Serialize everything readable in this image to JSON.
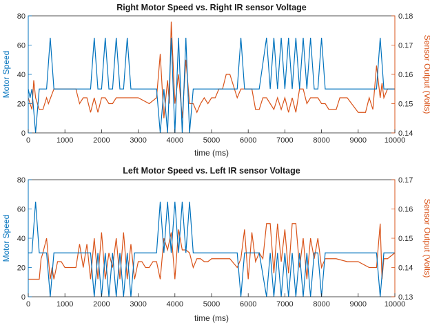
{
  "colors": {
    "left_axis": "#0072BD",
    "right_axis": "#D95319",
    "axes_box": "#262626"
  },
  "chart_data": [
    {
      "type": "line",
      "title": "Right Motor Speed vs. Right IR sensor Voltage",
      "xlabel": "time (ms)",
      "ylabel_left": "Motor Speed",
      "ylabel_right": "Sensor Output (Volts)",
      "xlim": [
        0,
        10000
      ],
      "ylim_left": [
        0,
        80
      ],
      "ylim_right": [
        0.14,
        0.18
      ],
      "xticks": [
        0,
        1000,
        2000,
        3000,
        4000,
        5000,
        6000,
        7000,
        8000,
        9000,
        10000
      ],
      "yticks_left": [
        0,
        20,
        40,
        60,
        80
      ],
      "yticks_right": [
        "0.14",
        "0.15",
        "0.16",
        "0.17",
        "0.18"
      ],
      "grid": false,
      "series": [
        {
          "name": "Motor Speed",
          "axis": "left",
          "color": "#0072BD",
          "x": [
            0,
            50,
            100,
            200,
            300,
            500,
            600,
            700,
            1000,
            1500,
            1700,
            1800,
            1900,
            2000,
            2100,
            2200,
            2300,
            2400,
            2500,
            2600,
            2700,
            2800,
            2900,
            3000,
            3300,
            3500,
            3600,
            3700,
            3800,
            3900,
            4000,
            4100,
            4200,
            4300,
            4400,
            4500,
            4600,
            5000,
            5500,
            5700,
            5800,
            5900,
            6000,
            6100,
            6300,
            6500,
            6600,
            6700,
            6800,
            6900,
            7000,
            7100,
            7200,
            7300,
            7400,
            7500,
            7600,
            7700,
            7800,
            7900,
            8000,
            8100,
            8500,
            9000,
            9400,
            9500,
            9600,
            9700,
            10000
          ],
          "y": [
            30,
            24,
            30,
            0,
            30,
            30,
            65,
            30,
            30,
            30,
            30,
            65,
            30,
            30,
            65,
            30,
            30,
            65,
            30,
            30,
            65,
            30,
            30,
            30,
            30,
            30,
            0,
            30,
            0,
            65,
            0,
            65,
            0,
            65,
            0,
            30,
            30,
            30,
            30,
            30,
            65,
            30,
            30,
            30,
            30,
            65,
            30,
            65,
            30,
            65,
            30,
            65,
            30,
            65,
            30,
            65,
            30,
            65,
            30,
            30,
            65,
            30,
            30,
            30,
            30,
            30,
            65,
            30,
            30
          ]
        },
        {
          "name": "Sensor Output",
          "axis": "right",
          "color": "#D95319",
          "x": [
            0,
            100,
            150,
            200,
            250,
            300,
            400,
            500,
            550,
            700,
            800,
            1000,
            1300,
            1400,
            1500,
            1600,
            1700,
            1800,
            1900,
            2000,
            2100,
            2200,
            2300,
            2400,
            2500,
            3000,
            3300,
            3500,
            3600,
            3700,
            3800,
            3850,
            3900,
            4000,
            4100,
            4200,
            4300,
            4400,
            4500,
            4600,
            4700,
            4800,
            4900,
            5000,
            5100,
            5200,
            5300,
            5400,
            5500,
            5700,
            5800,
            5900,
            6000,
            6100,
            6200,
            6300,
            6400,
            6500,
            6600,
            6700,
            6800,
            6900,
            7000,
            7100,
            7200,
            7300,
            7400,
            7500,
            7600,
            7700,
            7800,
            7900,
            8000,
            8100,
            8200,
            8400,
            8500,
            8700,
            9000,
            9200,
            9300,
            9400,
            9500,
            9600,
            9650,
            9700,
            9800,
            10000
          ],
          "y": [
            0.152,
            0.148,
            0.158,
            0.152,
            0.15,
            0.148,
            0.148,
            0.152,
            0.15,
            0.155,
            0.155,
            0.155,
            0.155,
            0.15,
            0.152,
            0.152,
            0.147,
            0.152,
            0.147,
            0.152,
            0.152,
            0.15,
            0.15,
            0.152,
            0.152,
            0.152,
            0.15,
            0.152,
            0.167,
            0.145,
            0.158,
            0.15,
            0.178,
            0.15,
            0.16,
            0.145,
            0.165,
            0.15,
            0.15,
            0.147,
            0.15,
            0.152,
            0.15,
            0.152,
            0.152,
            0.155,
            0.155,
            0.16,
            0.16,
            0.152,
            0.155,
            0.155,
            0.155,
            0.155,
            0.148,
            0.148,
            0.152,
            0.152,
            0.15,
            0.148,
            0.152,
            0.148,
            0.152,
            0.147,
            0.152,
            0.147,
            0.155,
            0.155,
            0.15,
            0.152,
            0.152,
            0.152,
            0.15,
            0.15,
            0.148,
            0.148,
            0.152,
            0.152,
            0.147,
            0.147,
            0.152,
            0.148,
            0.163,
            0.152,
            0.157,
            0.152,
            0.155,
            0.155
          ]
        }
      ]
    },
    {
      "type": "line",
      "title": "Left Motor Speed vs. Left IR sensor Voltage",
      "xlabel": "time (ms)",
      "ylabel_left": "Motor Speed",
      "ylabel_right": "Sensor Output (Volts)",
      "xlim": [
        0,
        10000
      ],
      "ylim_left": [
        0,
        80
      ],
      "ylim_right": [
        0.13,
        0.17
      ],
      "xticks": [
        0,
        1000,
        2000,
        3000,
        4000,
        5000,
        6000,
        7000,
        8000,
        9000,
        10000
      ],
      "yticks_left": [
        0,
        20,
        40,
        60,
        80
      ],
      "yticks_right": [
        "0.13",
        "0.14",
        "0.15",
        "0.16",
        "0.17"
      ],
      "grid": false,
      "series": [
        {
          "name": "Motor Speed",
          "axis": "left",
          "color": "#0072BD",
          "x": [
            0,
            100,
            200,
            300,
            500,
            600,
            700,
            1000,
            1500,
            1700,
            1800,
            1900,
            2000,
            2100,
            2200,
            2300,
            2400,
            2500,
            2600,
            2700,
            2800,
            2900,
            3000,
            3200,
            3500,
            3600,
            3700,
            3800,
            3900,
            4000,
            4100,
            4200,
            4300,
            4400,
            4500,
            4600,
            5000,
            5500,
            5700,
            5800,
            5900,
            6000,
            6100,
            6300,
            6500,
            6600,
            6700,
            6800,
            6900,
            7000,
            7100,
            7200,
            7300,
            7400,
            7500,
            7600,
            7700,
            7800,
            7900,
            8000,
            8100,
            8500,
            9000,
            9400,
            9500,
            9600,
            9700,
            10000
          ],
          "y": [
            30,
            30,
            65,
            30,
            30,
            0,
            30,
            30,
            30,
            30,
            0,
            30,
            0,
            30,
            0,
            30,
            0,
            30,
            0,
            30,
            0,
            30,
            30,
            30,
            30,
            65,
            30,
            65,
            30,
            65,
            30,
            65,
            30,
            65,
            30,
            30,
            30,
            30,
            30,
            0,
            30,
            30,
            30,
            30,
            0,
            30,
            0,
            30,
            0,
            30,
            0,
            30,
            0,
            30,
            0,
            30,
            0,
            30,
            30,
            0,
            30,
            30,
            30,
            30,
            30,
            0,
            30,
            30
          ]
        },
        {
          "name": "Sensor Output",
          "axis": "right",
          "color": "#D95319",
          "x": [
            0,
            300,
            350,
            400,
            500,
            600,
            650,
            700,
            800,
            900,
            1000,
            1300,
            1400,
            1500,
            1600,
            1700,
            1800,
            1900,
            2000,
            2100,
            2200,
            2300,
            2400,
            2500,
            2600,
            2700,
            2800,
            2900,
            3000,
            3100,
            3200,
            3300,
            3400,
            3500,
            3600,
            3700,
            3800,
            3900,
            4000,
            4100,
            4200,
            4300,
            4400,
            4500,
            4600,
            4700,
            4800,
            4900,
            5000,
            5500,
            5700,
            5800,
            5900,
            6000,
            6100,
            6200,
            6300,
            6400,
            6500,
            6600,
            6700,
            6800,
            6900,
            7000,
            7100,
            7200,
            7300,
            7400,
            7500,
            7600,
            7700,
            7800,
            7900,
            8000,
            8100,
            8400,
            8700,
            9000,
            9300,
            9500,
            9600,
            9650,
            9700,
            9800,
            10000
          ],
          "y": [
            0.136,
            0.136,
            0.143,
            0.145,
            0.15,
            0.136,
            0.14,
            0.136,
            0.142,
            0.142,
            0.14,
            0.14,
            0.148,
            0.14,
            0.148,
            0.136,
            0.15,
            0.136,
            0.152,
            0.136,
            0.145,
            0.14,
            0.15,
            0.136,
            0.152,
            0.136,
            0.148,
            0.136,
            0.142,
            0.142,
            0.14,
            0.14,
            0.142,
            0.142,
            0.136,
            0.15,
            0.146,
            0.152,
            0.136,
            0.153,
            0.146,
            0.146,
            0.145,
            0.14,
            0.143,
            0.143,
            0.142,
            0.142,
            0.143,
            0.143,
            0.14,
            0.143,
            0.153,
            0.136,
            0.152,
            0.142,
            0.145,
            0.143,
            0.155,
            0.155,
            0.138,
            0.155,
            0.142,
            0.153,
            0.138,
            0.155,
            0.155,
            0.14,
            0.15,
            0.136,
            0.15,
            0.143,
            0.15,
            0.14,
            0.143,
            0.143,
            0.142,
            0.142,
            0.14,
            0.14,
            0.155,
            0.136,
            0.143,
            0.143,
            0.145
          ]
        }
      ]
    }
  ]
}
